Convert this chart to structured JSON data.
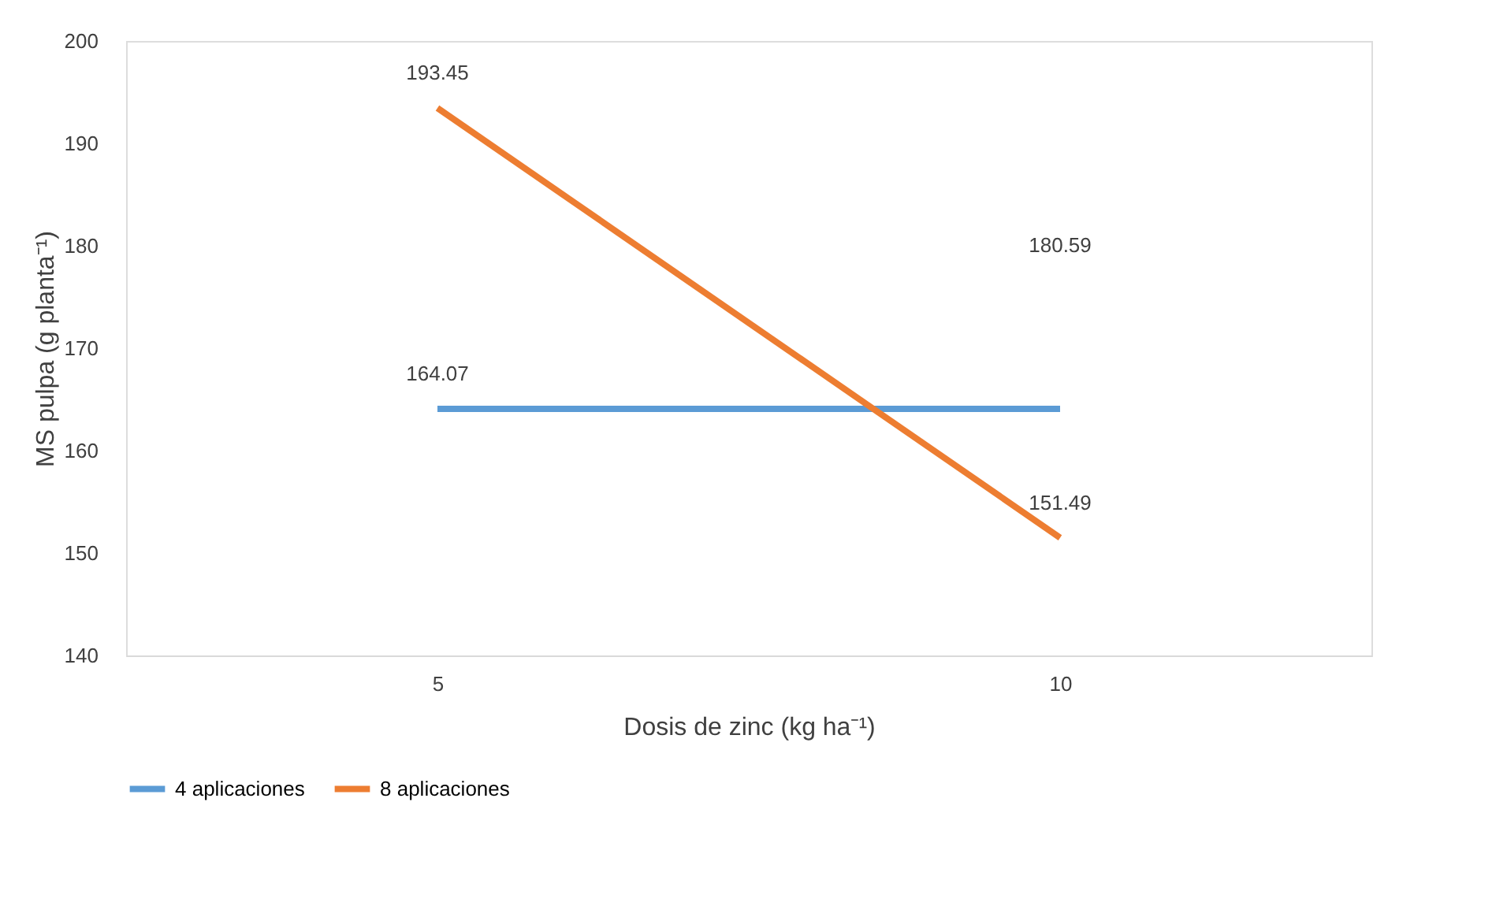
{
  "chart_data": {
    "type": "line",
    "xlabel": "Dosis de zinc (kg ha⁻¹)",
    "ylabel": "MS pulpa (g planta⁻¹)",
    "categories": [
      "5",
      "10"
    ],
    "series": [
      {
        "name": "4 aplicaciones",
        "color": "#5b9bd5",
        "values": [
          164.07,
          164.07
        ],
        "value_labels": [
          "164.07",
          null
        ]
      },
      {
        "name": "8 aplicaciones",
        "color": "#ed7d31",
        "values": [
          193.45,
          151.49
        ],
        "value_labels": [
          "193.45",
          "151.49"
        ]
      }
    ],
    "annotations": [
      "180.59"
    ],
    "ylim": [
      140,
      200
    ],
    "yticks": [
      140,
      150,
      160,
      170,
      180,
      190,
      200
    ],
    "grid": false,
    "legend": "bottom",
    "marker": "none",
    "line_style": "solid"
  }
}
